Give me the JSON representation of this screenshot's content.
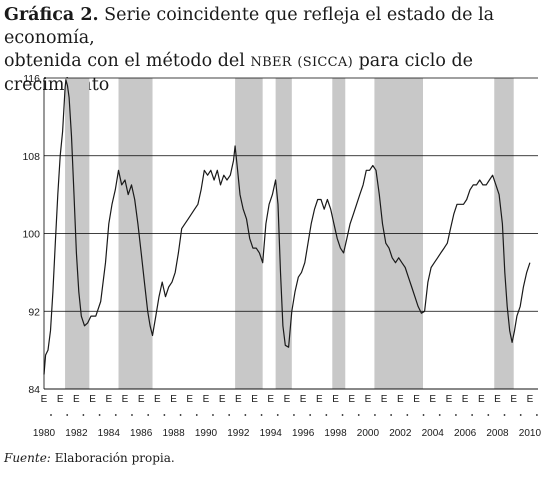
{
  "title": {
    "label": "Gráfica 2.",
    "line1": "Serie coincidente que refleja el estado de la economía,",
    "line2_a": "obtenida con el método del",
    "line2_nber": "NBER",
    "line2_sicca": "(SICCA)",
    "line2_b": "para ciclo de crecimiento"
  },
  "source": {
    "label": "Fuente:",
    "text": "Elaboración propia."
  },
  "colors": {
    "line": "#1a1a1a",
    "recession_band": "#c8c8c8",
    "grid": "#000000"
  },
  "chart_data": {
    "type": "line",
    "xlim": [
      1980,
      2010.5
    ],
    "ylim": [
      84,
      116
    ],
    "yticks": [
      84,
      92,
      100,
      108,
      116
    ],
    "xticks": [
      1980,
      1982,
      1984,
      1986,
      1988,
      1990,
      1992,
      1994,
      1996,
      1998,
      2000,
      2002,
      2004,
      2006,
      2008,
      2010
    ],
    "month_tick_label": "E",
    "grid": "horizontal",
    "recession_bands": [
      [
        1981.3,
        1982.8
      ],
      [
        1984.6,
        1986.7
      ],
      [
        1991.8,
        1993.5
      ],
      [
        1994.3,
        1995.3
      ],
      [
        1997.8,
        1998.6
      ],
      [
        2000.4,
        2003.4
      ],
      [
        2007.8,
        2009.0
      ]
    ],
    "series": [
      {
        "points": [
          [
            1980.0,
            85.5
          ],
          [
            1980.1,
            87.5
          ],
          [
            1980.25,
            88.0
          ],
          [
            1980.4,
            90.0
          ],
          [
            1980.55,
            94.0
          ],
          [
            1980.7,
            99.0
          ],
          [
            1980.85,
            104.0
          ],
          [
            1981.0,
            108.0
          ],
          [
            1981.15,
            110.5
          ],
          [
            1981.3,
            115.0
          ],
          [
            1981.35,
            115.8
          ],
          [
            1981.45,
            115.2
          ],
          [
            1981.55,
            114.0
          ],
          [
            1981.7,
            110.0
          ],
          [
            1981.85,
            104.0
          ],
          [
            1982.0,
            98.0
          ],
          [
            1982.15,
            94.0
          ],
          [
            1982.3,
            91.5
          ],
          [
            1982.5,
            90.5
          ],
          [
            1982.7,
            90.8
          ],
          [
            1982.9,
            91.5
          ],
          [
            1983.2,
            91.5
          ],
          [
            1983.5,
            93.0
          ],
          [
            1983.8,
            97.0
          ],
          [
            1984.0,
            101.0
          ],
          [
            1984.2,
            103.0
          ],
          [
            1984.4,
            104.5
          ],
          [
            1984.6,
            106.5
          ],
          [
            1984.8,
            105.0
          ],
          [
            1985.0,
            105.5
          ],
          [
            1985.2,
            104.0
          ],
          [
            1985.4,
            105.0
          ],
          [
            1985.6,
            103.5
          ],
          [
            1985.8,
            101.0
          ],
          [
            1986.0,
            98.0
          ],
          [
            1986.2,
            95.0
          ],
          [
            1986.4,
            92.0
          ],
          [
            1986.55,
            90.5
          ],
          [
            1986.7,
            89.5
          ],
          [
            1986.9,
            91.5
          ],
          [
            1987.1,
            93.5
          ],
          [
            1987.3,
            95.0
          ],
          [
            1987.5,
            93.5
          ],
          [
            1987.7,
            94.5
          ],
          [
            1987.9,
            95.0
          ],
          [
            1988.1,
            96.0
          ],
          [
            1988.3,
            98.0
          ],
          [
            1988.5,
            100.5
          ],
          [
            1988.7,
            101.0
          ],
          [
            1988.9,
            101.5
          ],
          [
            1989.1,
            102.0
          ],
          [
            1989.3,
            102.5
          ],
          [
            1989.5,
            103.0
          ],
          [
            1989.7,
            104.5
          ],
          [
            1989.9,
            106.5
          ],
          [
            1990.1,
            106.0
          ],
          [
            1990.3,
            106.5
          ],
          [
            1990.5,
            105.5
          ],
          [
            1990.7,
            106.5
          ],
          [
            1990.9,
            105.0
          ],
          [
            1991.1,
            106.0
          ],
          [
            1991.3,
            105.5
          ],
          [
            1991.5,
            106.0
          ],
          [
            1991.7,
            107.5
          ],
          [
            1991.8,
            109.0
          ],
          [
            1991.95,
            106.5
          ],
          [
            1992.1,
            104.0
          ],
          [
            1992.3,
            102.5
          ],
          [
            1992.5,
            101.5
          ],
          [
            1992.7,
            99.5
          ],
          [
            1992.9,
            98.5
          ],
          [
            1993.1,
            98.5
          ],
          [
            1993.3,
            98.0
          ],
          [
            1993.5,
            97.0
          ],
          [
            1993.7,
            101.0
          ],
          [
            1993.9,
            103.0
          ],
          [
            1994.1,
            104.0
          ],
          [
            1994.3,
            105.5
          ],
          [
            1994.45,
            103.0
          ],
          [
            1994.6,
            96.0
          ],
          [
            1994.75,
            90.5
          ],
          [
            1994.9,
            88.5
          ],
          [
            1995.1,
            88.3
          ],
          [
            1995.3,
            92.0
          ],
          [
            1995.5,
            94.0
          ],
          [
            1995.7,
            95.5
          ],
          [
            1995.9,
            96.0
          ],
          [
            1996.1,
            97.0
          ],
          [
            1996.3,
            99.0
          ],
          [
            1996.5,
            101.0
          ],
          [
            1996.7,
            102.5
          ],
          [
            1996.9,
            103.5
          ],
          [
            1997.1,
            103.5
          ],
          [
            1997.3,
            102.5
          ],
          [
            1997.5,
            103.5
          ],
          [
            1997.7,
            102.5
          ],
          [
            1997.9,
            101.0
          ],
          [
            1998.1,
            99.5
          ],
          [
            1998.3,
            98.5
          ],
          [
            1998.5,
            98.0
          ],
          [
            1998.7,
            99.5
          ],
          [
            1998.9,
            101.0
          ],
          [
            1999.1,
            102.0
          ],
          [
            1999.3,
            103.0
          ],
          [
            1999.5,
            104.0
          ],
          [
            1999.7,
            105.0
          ],
          [
            1999.9,
            106.5
          ],
          [
            2000.1,
            106.5
          ],
          [
            2000.3,
            107.0
          ],
          [
            2000.5,
            106.5
          ],
          [
            2000.7,
            104.0
          ],
          [
            2000.9,
            101.0
          ],
          [
            2001.1,
            99.0
          ],
          [
            2001.3,
            98.5
          ],
          [
            2001.5,
            97.5
          ],
          [
            2001.7,
            97.0
          ],
          [
            2001.9,
            97.5
          ],
          [
            2002.1,
            97.0
          ],
          [
            2002.3,
            96.5
          ],
          [
            2002.5,
            95.5
          ],
          [
            2002.7,
            94.5
          ],
          [
            2002.9,
            93.5
          ],
          [
            2003.1,
            92.5
          ],
          [
            2003.3,
            91.8
          ],
          [
            2003.5,
            92.0
          ],
          [
            2003.7,
            95.0
          ],
          [
            2003.9,
            96.5
          ],
          [
            2004.1,
            97.0
          ],
          [
            2004.3,
            97.5
          ],
          [
            2004.5,
            98.0
          ],
          [
            2004.7,
            98.5
          ],
          [
            2004.9,
            99.0
          ],
          [
            2005.1,
            100.5
          ],
          [
            2005.3,
            102.0
          ],
          [
            2005.5,
            103.0
          ],
          [
            2005.7,
            103.0
          ],
          [
            2005.9,
            103.0
          ],
          [
            2006.1,
            103.5
          ],
          [
            2006.3,
            104.5
          ],
          [
            2006.5,
            105.0
          ],
          [
            2006.7,
            105.0
          ],
          [
            2006.9,
            105.5
          ],
          [
            2007.1,
            105.0
          ],
          [
            2007.3,
            105.0
          ],
          [
            2007.5,
            105.5
          ],
          [
            2007.7,
            106.0
          ],
          [
            2007.9,
            105.0
          ],
          [
            2008.1,
            104.0
          ],
          [
            2008.3,
            101.0
          ],
          [
            2008.45,
            96.0
          ],
          [
            2008.6,
            92.5
          ],
          [
            2008.75,
            90.0
          ],
          [
            2008.9,
            88.8
          ],
          [
            2009.05,
            90.0
          ],
          [
            2009.2,
            91.5
          ],
          [
            2009.4,
            92.5
          ],
          [
            2009.6,
            94.5
          ],
          [
            2009.8,
            96.0
          ],
          [
            2010.0,
            97.0
          ]
        ]
      }
    ]
  }
}
